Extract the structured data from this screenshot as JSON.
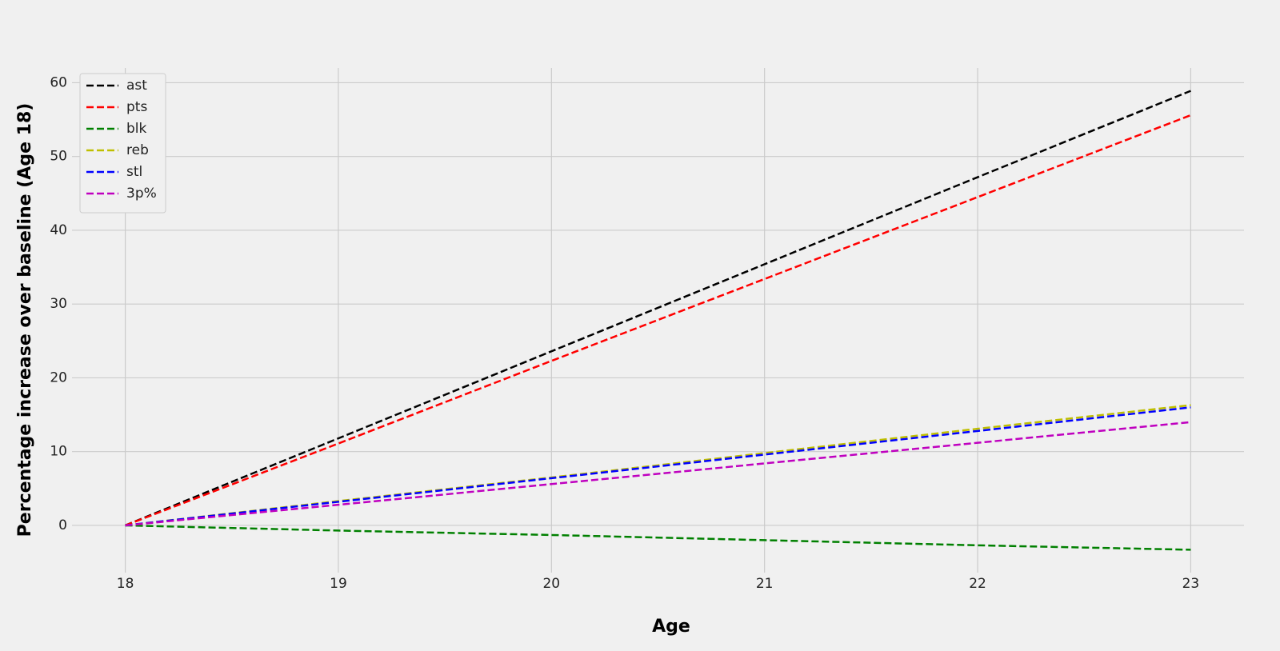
{
  "chart_data": {
    "type": "line",
    "x_label": "Age",
    "y_label": "Percentage increase over baseline (Age 18)",
    "x": [
      18,
      19,
      20,
      21,
      22,
      23
    ],
    "series": [
      {
        "name": "ast",
        "color": "#000000",
        "values": [
          0,
          11.8,
          23.6,
          35.4,
          47.2,
          58.9
        ]
      },
      {
        "name": "pts",
        "color": "#ff0000",
        "values": [
          0,
          11.1,
          22.3,
          33.4,
          44.5,
          55.6
        ]
      },
      {
        "name": "blk",
        "color": "#008000",
        "values": [
          0,
          -0.7,
          -1.3,
          -2.0,
          -2.7,
          -3.3
        ]
      },
      {
        "name": "reb",
        "color": "#bfbf00",
        "values": [
          0,
          3.3,
          6.5,
          9.8,
          13.1,
          16.3
        ]
      },
      {
        "name": "stl",
        "color": "#0000ff",
        "values": [
          0,
          3.2,
          6.4,
          9.6,
          12.8,
          16.0
        ]
      },
      {
        "name": "3p%",
        "color": "#bf00bf",
        "values": [
          0,
          2.8,
          5.6,
          8.4,
          11.2,
          14.0
        ]
      }
    ],
    "xlim": [
      17.75,
      23.25
    ],
    "xticks": [
      18,
      19,
      20,
      21,
      22,
      23
    ],
    "ylim": [
      -6.4,
      62.0
    ],
    "yticks": [
      0,
      10,
      20,
      30,
      40,
      50,
      60
    ],
    "grid": true,
    "legend": "upper-left",
    "line_style": "dashed"
  }
}
